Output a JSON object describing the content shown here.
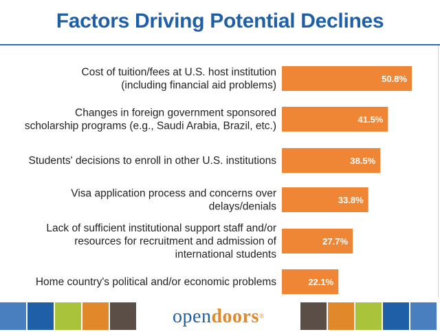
{
  "chart_data": {
    "type": "bar",
    "orientation": "horizontal",
    "title": "Factors Driving Potential Declines",
    "categories": [
      [
        "Cost of tuition/fees at U.S. host institution",
        "(including financial aid problems)"
      ],
      [
        "Changes in foreign government sponsored",
        "scholarship programs (e.g., Saudi Arabia, Brazil, etc.)"
      ],
      [
        "Students' decisions to enroll in other U.S. institutions"
      ],
      [
        "Visa application process and concerns over",
        "delays/denials"
      ],
      [
        "Lack of sufficient institutional support staff and/or",
        "resources for recruitment and admission of",
        "international students"
      ],
      [
        "Home country's political and/or economic problems"
      ]
    ],
    "values": [
      50.8,
      41.5,
      38.5,
      33.8,
      27.7,
      22.1
    ],
    "value_labels": [
      "50.8%",
      "41.5%",
      "38.5%",
      "33.8%",
      "27.7%",
      "22.1%"
    ],
    "bar_color": "#ee8636",
    "xlim": [
      0,
      60
    ],
    "grid": false,
    "legend": "none"
  },
  "footer": {
    "logo_open": "open",
    "logo_doors": "doors",
    "logo_reg": "®",
    "tile_colors": [
      "#4a7fbf",
      "#1f5fa8",
      "#a9c43a",
      "#e0882a",
      "#5a4e46",
      "#5a4e46",
      "#e0882a",
      "#a9c43a",
      "#1f5fa8",
      "#4a7fbf"
    ]
  }
}
